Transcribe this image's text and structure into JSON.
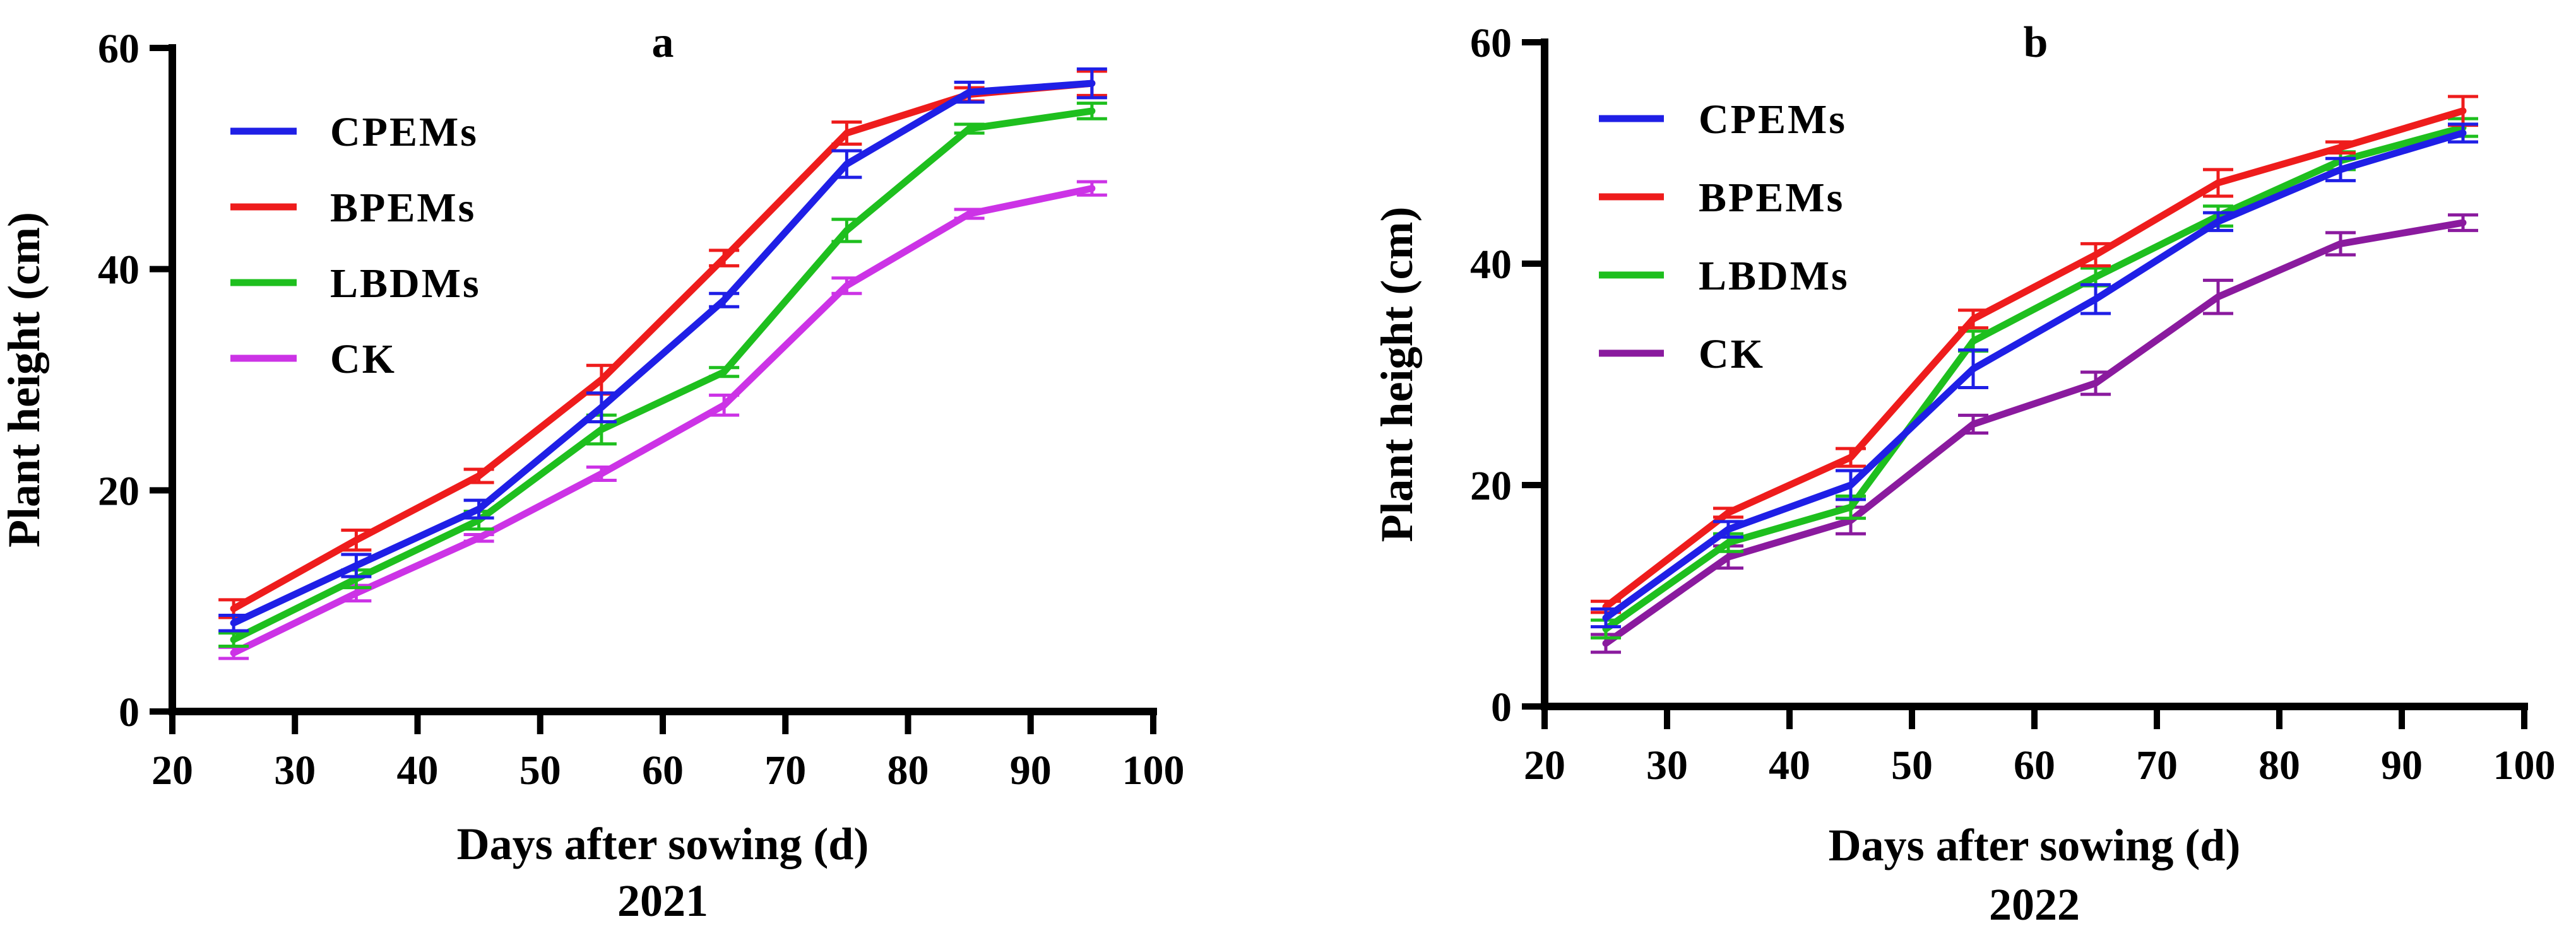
{
  "chart_data": [
    {
      "type": "line",
      "panel_label": "a",
      "year_label": "2021",
      "xlabel": "Days after sowing (d)",
      "ylabel": "Plant height (cm)",
      "xlim": [
        20,
        100
      ],
      "ylim": [
        0,
        60
      ],
      "x_ticks": [
        20,
        30,
        40,
        50,
        60,
        70,
        80,
        90,
        100
      ],
      "y_ticks": [
        0,
        20,
        40,
        60
      ],
      "x": [
        25,
        35,
        45,
        55,
        65,
        75,
        85,
        95
      ],
      "legend_position": "top-left",
      "series": [
        {
          "name": "CPEMs",
          "color": "#1f1fe6",
          "values": [
            8.0,
            13.2,
            18.3,
            27.5,
            37.2,
            49.5,
            56.0,
            56.8
          ],
          "errors": [
            0.7,
            1.0,
            0.8,
            1.3,
            0.6,
            1.2,
            0.9,
            1.3
          ]
        },
        {
          "name": "BPEMs",
          "color": "#ee1c1c",
          "values": [
            9.3,
            15.5,
            21.3,
            30.0,
            41.0,
            52.3,
            55.8,
            56.8
          ],
          "errors": [
            0.8,
            0.9,
            0.6,
            1.3,
            0.7,
            1.0,
            0.6,
            1.1
          ]
        },
        {
          "name": "LBDMs",
          "color": "#1ebf1e",
          "values": [
            6.5,
            12.0,
            17.3,
            25.5,
            30.7,
            43.5,
            52.7,
            54.3
          ],
          "errors": [
            0.6,
            0.8,
            0.8,
            1.3,
            0.4,
            1.0,
            0.4,
            0.7
          ]
        },
        {
          "name": "CK",
          "color": "#cc33e6",
          "values": [
            5.3,
            10.7,
            15.7,
            21.5,
            27.7,
            38.5,
            45.0,
            47.3
          ],
          "errors": [
            0.5,
            0.7,
            0.3,
            0.6,
            0.9,
            0.7,
            0.4,
            0.6
          ]
        }
      ]
    },
    {
      "type": "line",
      "panel_label": "b",
      "year_label": "2022",
      "xlabel": "Days after sowing (d)",
      "ylabel": "Plant height (cm)",
      "xlim": [
        20,
        100
      ],
      "ylim": [
        0,
        60
      ],
      "x_ticks": [
        20,
        30,
        40,
        50,
        60,
        70,
        80,
        90,
        100
      ],
      "y_ticks": [
        0,
        20,
        40,
        60
      ],
      "x": [
        25,
        35,
        45,
        55,
        65,
        75,
        85,
        95
      ],
      "legend_position": "top-left",
      "series": [
        {
          "name": "CPEMs",
          "color": "#1f1fe6",
          "values": [
            8.0,
            16.0,
            20.0,
            30.5,
            36.8,
            43.8,
            48.5,
            51.8
          ],
          "errors": [
            0.8,
            0.7,
            1.3,
            1.7,
            1.3,
            0.8,
            1.0,
            0.8
          ]
        },
        {
          "name": "BPEMs",
          "color": "#ee1c1c",
          "values": [
            9.0,
            17.5,
            22.5,
            35.0,
            40.8,
            47.3,
            50.5,
            53.8
          ],
          "errors": [
            0.5,
            0.4,
            0.8,
            0.8,
            1.0,
            1.2,
            0.5,
            1.3
          ]
        },
        {
          "name": "LBDMs",
          "color": "#1ebf1e",
          "values": [
            7.0,
            14.8,
            18.0,
            33.0,
            38.8,
            44.3,
            49.3,
            52.3
          ],
          "errors": [
            0.8,
            0.8,
            1.0,
            0.9,
            0.8,
            0.9,
            0.8,
            0.8
          ]
        },
        {
          "name": "CK",
          "color": "#8a1a9e",
          "values": [
            5.7,
            13.5,
            16.8,
            25.5,
            29.2,
            37.0,
            41.8,
            43.7
          ],
          "errors": [
            0.8,
            1.0,
            1.2,
            0.8,
            1.0,
            1.5,
            1.0,
            0.7
          ]
        }
      ]
    }
  ]
}
